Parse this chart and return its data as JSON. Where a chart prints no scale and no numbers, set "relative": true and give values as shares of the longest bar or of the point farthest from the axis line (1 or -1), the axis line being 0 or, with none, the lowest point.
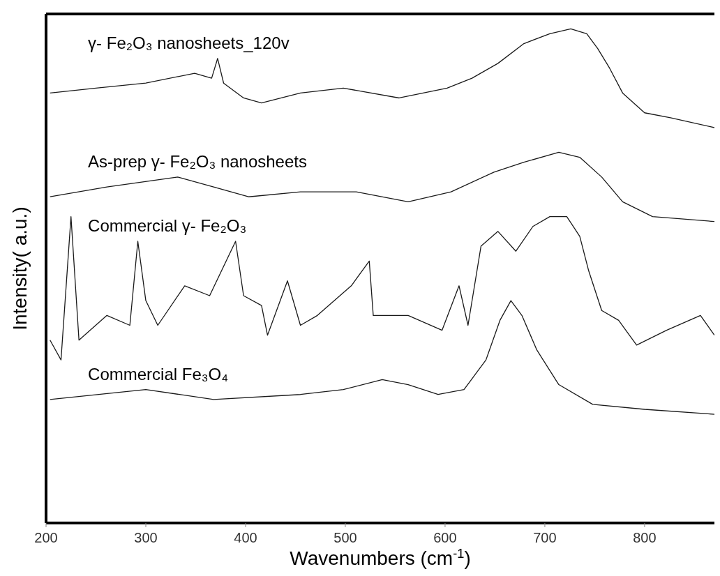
{
  "chart_data": {
    "type": "line",
    "relative": true,
    "xlabel": "Wavenumbers (cm$^{-1}$)",
    "ylabel": "Intensity( a.u.)",
    "xlim": [
      200,
      870
    ],
    "xticks": [
      200,
      300,
      400,
      500,
      600,
      700,
      800
    ],
    "line_style": "solid",
    "series": [
      {
        "name": "γ- Fe₂O₃  nanosheets_120v",
        "color": "#1a1a1a",
        "x": [
          204,
          250,
          300,
          349,
          366,
          372,
          378,
          398,
          416,
          455,
          498,
          554,
          602,
          627,
          653,
          679,
          705,
          726,
          742,
          753,
          765,
          778,
          800,
          826,
          870
        ],
        "values": [
          0.87,
          0.88,
          0.89,
          0.91,
          0.9,
          0.94,
          0.89,
          0.86,
          0.85,
          0.87,
          0.88,
          0.86,
          0.88,
          0.9,
          0.93,
          0.97,
          0.99,
          1.0,
          0.99,
          0.96,
          0.92,
          0.87,
          0.83,
          0.82,
          0.8
        ]
      },
      {
        "name": "As-prep γ- Fe₂O₃  nanosheets",
        "color": "#1a1a1a",
        "x": [
          204,
          261,
          332,
          368,
          403,
          455,
          511,
          563,
          606,
          649,
          679,
          714,
          735,
          757,
          778,
          808,
          870
        ],
        "values": [
          0.66,
          0.68,
          0.7,
          0.68,
          0.66,
          0.67,
          0.67,
          0.65,
          0.67,
          0.71,
          0.73,
          0.75,
          0.74,
          0.7,
          0.65,
          0.62,
          0.61
        ]
      },
      {
        "name": "Commercial γ- Fe₂O₃",
        "color": "#1a1a1a",
        "x": [
          204,
          215,
          225,
          233,
          261,
          284,
          292,
          300,
          312,
          339,
          364,
          390,
          398,
          416,
          422,
          442,
          455,
          472,
          506,
          524,
          528,
          563,
          597,
          614,
          623,
          636,
          653,
          671,
          688,
          705,
          714,
          722,
          735,
          744,
          757,
          774,
          792,
          822,
          856,
          870
        ],
        "values": [
          0.37,
          0.33,
          0.62,
          0.37,
          0.42,
          0.4,
          0.57,
          0.45,
          0.4,
          0.48,
          0.46,
          0.57,
          0.46,
          0.44,
          0.38,
          0.49,
          0.4,
          0.42,
          0.48,
          0.53,
          0.42,
          0.42,
          0.39,
          0.48,
          0.4,
          0.56,
          0.59,
          0.55,
          0.6,
          0.62,
          0.62,
          0.62,
          0.58,
          0.51,
          0.43,
          0.41,
          0.36,
          0.39,
          0.42,
          0.38
        ]
      },
      {
        "name": "Commercial Fe₃O₄",
        "color": "#1a1a1a",
        "x": [
          204,
          300,
          368,
          455,
          498,
          537,
          563,
          593,
          619,
          641,
          655,
          666,
          677,
          692,
          714,
          748,
          800,
          870
        ],
        "values": [
          0.25,
          0.27,
          0.25,
          0.26,
          0.27,
          0.29,
          0.28,
          0.26,
          0.27,
          0.33,
          0.41,
          0.45,
          0.42,
          0.35,
          0.28,
          0.24,
          0.23,
          0.22
        ]
      }
    ]
  }
}
